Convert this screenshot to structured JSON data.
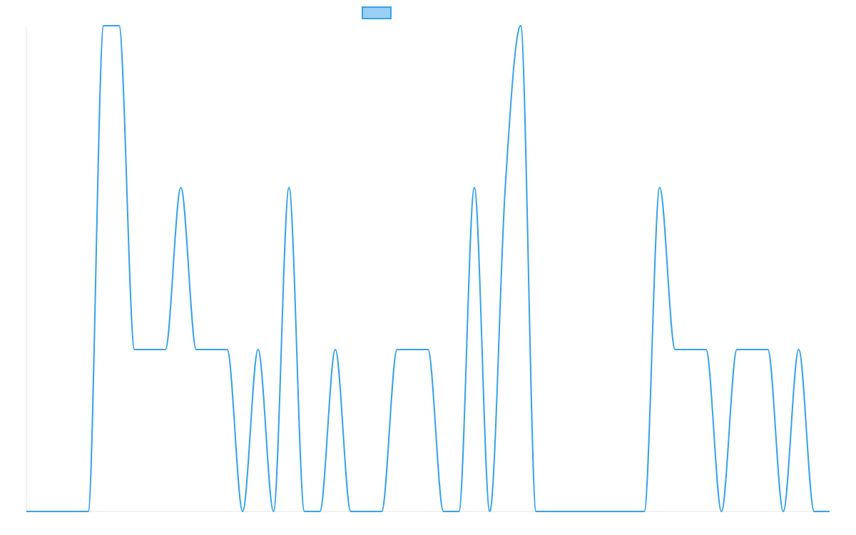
{
  "chart_data": {
    "type": "line",
    "title": "",
    "xlabel": "",
    "ylabel": "",
    "ylim": [
      0,
      3
    ],
    "grid": false,
    "legend": "top-center",
    "line_color": "#36a2eb",
    "fill_color": "#9ad0f5",
    "x": [
      0,
      1,
      2,
      3,
      4,
      5,
      6,
      7,
      8,
      9,
      10,
      11,
      12,
      13,
      14,
      15,
      16,
      17,
      18,
      19,
      20,
      21,
      22,
      23,
      24,
      25,
      26,
      27,
      28,
      29,
      30,
      31,
      32,
      33,
      34,
      35,
      36,
      37,
      38,
      39,
      40,
      41,
      42,
      43,
      44,
      45,
      46,
      47,
      48,
      49,
      50,
      51,
      52
    ],
    "series": [
      {
        "name": "",
        "values": [
          0,
          0,
          0,
          0,
          0,
          3,
          3,
          1,
          1,
          1,
          2,
          1,
          1,
          1,
          0,
          1,
          0,
          2,
          0,
          0,
          1,
          0,
          0,
          0,
          1,
          1,
          1,
          0,
          0,
          2,
          0,
          2,
          3,
          0,
          0,
          0,
          0,
          0,
          0,
          0,
          0,
          2,
          1,
          1,
          1,
          0,
          1,
          1,
          1,
          0,
          1,
          0,
          0
        ]
      }
    ]
  }
}
